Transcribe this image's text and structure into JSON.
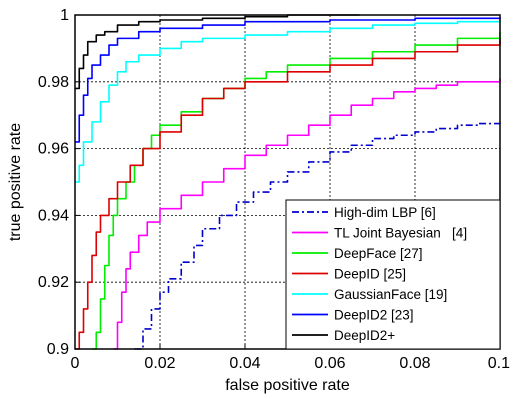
{
  "chart_data": {
    "type": "line",
    "title": "",
    "xlabel": "false positive rate",
    "ylabel": "true positive rate",
    "xlim": [
      0,
      0.1
    ],
    "ylim": [
      0.9,
      1
    ],
    "x_ticks": [
      "0",
      "0.02",
      "0.04",
      "0.06",
      "0.08",
      "0.1"
    ],
    "y_ticks": [
      "0.9",
      "0.92",
      "0.94",
      "0.96",
      "0.98",
      "1"
    ],
    "grid": true,
    "legend_position": "bottom-right",
    "series": [
      {
        "name": "High-dim LBP [6]",
        "color": "#0000cc",
        "dash": "dashdot",
        "points": [
          [
            0.014,
            0.9
          ],
          [
            0.016,
            0.906
          ],
          [
            0.018,
            0.912
          ],
          [
            0.02,
            0.917
          ],
          [
            0.022,
            0.921
          ],
          [
            0.025,
            0.926
          ],
          [
            0.028,
            0.931
          ],
          [
            0.03,
            0.936
          ],
          [
            0.034,
            0.94
          ],
          [
            0.038,
            0.944
          ],
          [
            0.042,
            0.947
          ],
          [
            0.046,
            0.95
          ],
          [
            0.05,
            0.953
          ],
          [
            0.055,
            0.956
          ],
          [
            0.06,
            0.959
          ],
          [
            0.065,
            0.961
          ],
          [
            0.07,
            0.963
          ],
          [
            0.075,
            0.964
          ],
          [
            0.08,
            0.965
          ],
          [
            0.085,
            0.966
          ],
          [
            0.09,
            0.967
          ],
          [
            0.095,
            0.9675
          ],
          [
            0.1,
            0.968
          ]
        ]
      },
      {
        "name": "TL Joint Bayesian   [4]",
        "color": "#ff00ff",
        "dash": "solid",
        "points": [
          [
            0.009,
            0.9
          ],
          [
            0.01,
            0.908
          ],
          [
            0.011,
            0.917
          ],
          [
            0.012,
            0.924
          ],
          [
            0.013,
            0.929
          ],
          [
            0.015,
            0.934
          ],
          [
            0.017,
            0.938
          ],
          [
            0.02,
            0.942
          ],
          [
            0.025,
            0.946
          ],
          [
            0.03,
            0.95
          ],
          [
            0.035,
            0.954
          ],
          [
            0.04,
            0.958
          ],
          [
            0.045,
            0.961
          ],
          [
            0.05,
            0.964
          ],
          [
            0.055,
            0.967
          ],
          [
            0.06,
            0.97
          ],
          [
            0.065,
            0.973
          ],
          [
            0.07,
            0.975
          ],
          [
            0.075,
            0.977
          ],
          [
            0.08,
            0.978
          ],
          [
            0.085,
            0.979
          ],
          [
            0.09,
            0.98
          ],
          [
            0.1,
            0.981
          ]
        ]
      },
      {
        "name": "DeepFace [27]",
        "color": "#00ee00",
        "dash": "solid",
        "points": [
          [
            0.004,
            0.9
          ],
          [
            0.005,
            0.905
          ],
          [
            0.006,
            0.915
          ],
          [
            0.007,
            0.925
          ],
          [
            0.008,
            0.934
          ],
          [
            0.009,
            0.94
          ],
          [
            0.01,
            0.945
          ],
          [
            0.012,
            0.95
          ],
          [
            0.014,
            0.955
          ],
          [
            0.016,
            0.96
          ],
          [
            0.018,
            0.964
          ],
          [
            0.02,
            0.967
          ],
          [
            0.025,
            0.971
          ],
          [
            0.03,
            0.975
          ],
          [
            0.035,
            0.978
          ],
          [
            0.04,
            0.981
          ],
          [
            0.045,
            0.983
          ],
          [
            0.05,
            0.985
          ],
          [
            0.06,
            0.987
          ],
          [
            0.07,
            0.989
          ],
          [
            0.08,
            0.991
          ],
          [
            0.09,
            0.993
          ],
          [
            0.1,
            0.995
          ]
        ]
      },
      {
        "name": "DeepID [25]",
        "color": "#dd0000",
        "dash": "solid",
        "points": [
          [
            0.0,
            0.9
          ],
          [
            0.001,
            0.905
          ],
          [
            0.002,
            0.912
          ],
          [
            0.003,
            0.92
          ],
          [
            0.004,
            0.928
          ],
          [
            0.005,
            0.935
          ],
          [
            0.006,
            0.94
          ],
          [
            0.008,
            0.945
          ],
          [
            0.01,
            0.95
          ],
          [
            0.013,
            0.955
          ],
          [
            0.016,
            0.96
          ],
          [
            0.02,
            0.965
          ],
          [
            0.025,
            0.97
          ],
          [
            0.03,
            0.975
          ],
          [
            0.035,
            0.978
          ],
          [
            0.04,
            0.98
          ],
          [
            0.05,
            0.983
          ],
          [
            0.06,
            0.985
          ],
          [
            0.07,
            0.987
          ],
          [
            0.08,
            0.989
          ],
          [
            0.09,
            0.991
          ],
          [
            0.1,
            0.993
          ]
        ]
      },
      {
        "name": "GaussianFace [19]",
        "color": "#00ffff",
        "dash": "solid",
        "points": [
          [
            0.0,
            0.95
          ],
          [
            0.001,
            0.955
          ],
          [
            0.002,
            0.962
          ],
          [
            0.004,
            0.968
          ],
          [
            0.006,
            0.974
          ],
          [
            0.008,
            0.979
          ],
          [
            0.01,
            0.983
          ],
          [
            0.012,
            0.986
          ],
          [
            0.015,
            0.988
          ],
          [
            0.02,
            0.99
          ],
          [
            0.025,
            0.992
          ],
          [
            0.03,
            0.993
          ],
          [
            0.04,
            0.994
          ],
          [
            0.05,
            0.995
          ],
          [
            0.06,
            0.996
          ],
          [
            0.07,
            0.997
          ],
          [
            0.08,
            0.9975
          ],
          [
            0.09,
            0.998
          ],
          [
            0.1,
            0.9985
          ]
        ]
      },
      {
        "name": "DeepID2 [23]",
        "color": "#0000ff",
        "dash": "solid",
        "points": [
          [
            0.0,
            0.962
          ],
          [
            0.001,
            0.97
          ],
          [
            0.002,
            0.976
          ],
          [
            0.003,
            0.981
          ],
          [
            0.004,
            0.985
          ],
          [
            0.006,
            0.988
          ],
          [
            0.008,
            0.991
          ],
          [
            0.01,
            0.993
          ],
          [
            0.015,
            0.995
          ],
          [
            0.02,
            0.996
          ],
          [
            0.03,
            0.997
          ],
          [
            0.04,
            0.998
          ],
          [
            0.06,
            0.9985
          ],
          [
            0.08,
            0.999
          ],
          [
            0.1,
            0.9992
          ]
        ]
      },
      {
        "name": "DeepID2+",
        "color": "#000000",
        "dash": "solid",
        "points": [
          [
            0.0,
            0.978
          ],
          [
            0.001,
            0.984
          ],
          [
            0.002,
            0.988
          ],
          [
            0.003,
            0.992
          ],
          [
            0.005,
            0.994
          ],
          [
            0.007,
            0.995
          ],
          [
            0.01,
            0.997
          ],
          [
            0.015,
            0.998
          ],
          [
            0.02,
            0.9985
          ],
          [
            0.03,
            0.999
          ],
          [
            0.04,
            0.9995
          ],
          [
            0.05,
            1.0
          ],
          [
            0.067,
            1.0
          ]
        ]
      }
    ]
  }
}
